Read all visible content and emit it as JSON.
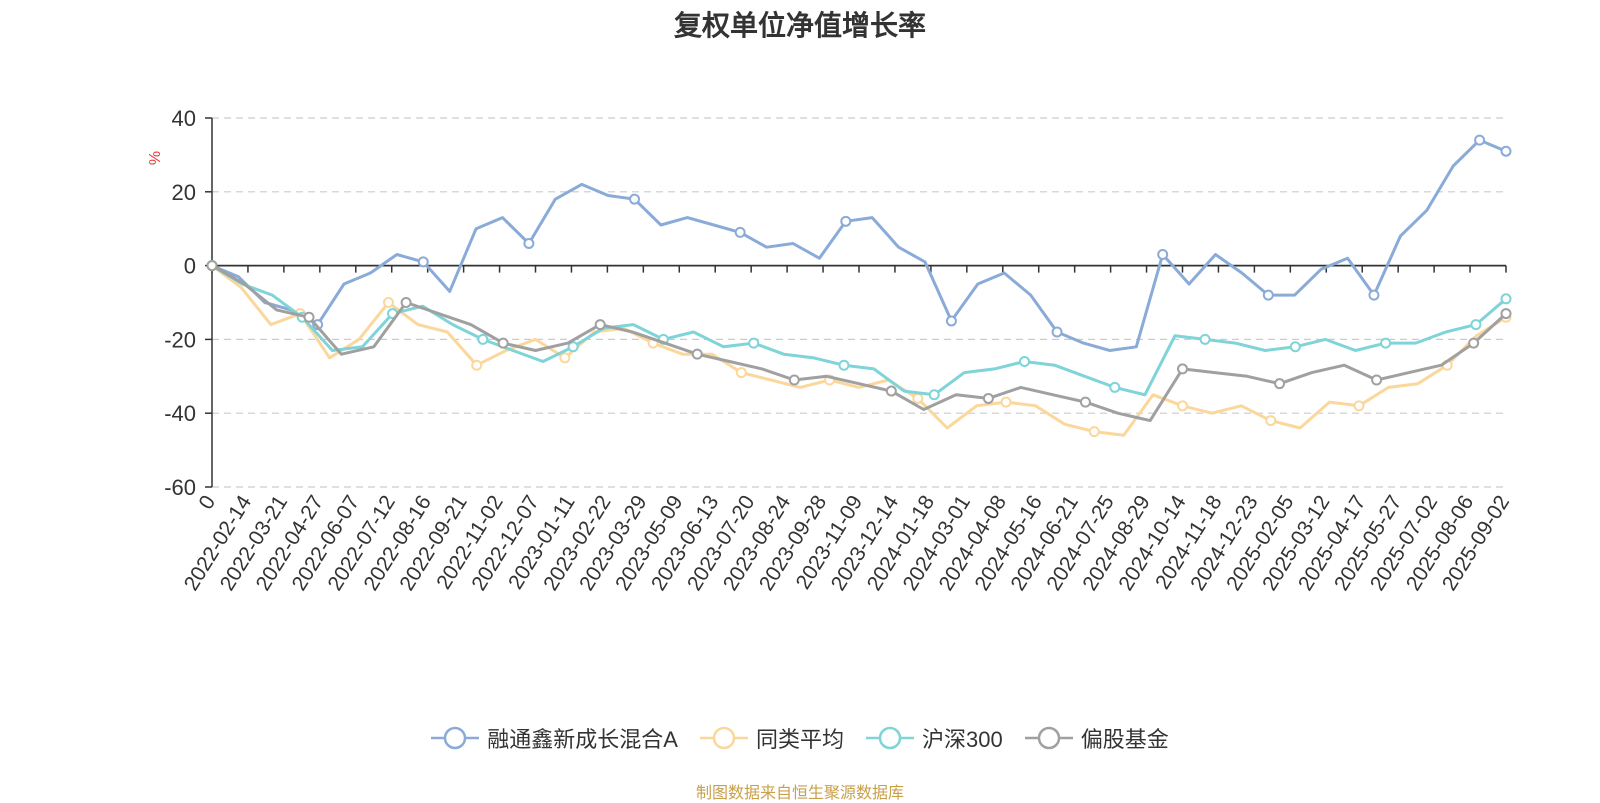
{
  "title": "复权单位净值增长率",
  "source_note": "制图数据来自恒生聚源数据库",
  "chart_data": {
    "type": "line",
    "title": "复权单位净值增长率",
    "ylabel": "%",
    "ylim": [
      -60,
      40
    ],
    "yticks": [
      40,
      20,
      0,
      -20,
      -40,
      -60
    ],
    "grid": true,
    "legend_position": "bottom",
    "x_labels": [
      "0",
      "2022-02-14",
      "2022-03-21",
      "2022-04-27",
      "2022-06-07",
      "2022-07-12",
      "2022-08-16",
      "2022-09-21",
      "2022-11-02",
      "2022-12-07",
      "2023-01-11",
      "2023-02-22",
      "2023-03-29",
      "2023-05-09",
      "2023-06-13",
      "2023-07-20",
      "2023-08-24",
      "2023-09-28",
      "2023-11-09",
      "2023-12-14",
      "2024-01-18",
      "2024-03-01",
      "2024-04-08",
      "2024-05-16",
      "2024-06-21",
      "2024-07-25",
      "2024-08-29",
      "2024-10-14",
      "2024-11-18",
      "2024-12-23",
      "2025-02-05",
      "2025-03-12",
      "2025-04-17",
      "2025-05-27",
      "2025-07-02",
      "2025-08-06",
      "2025-09-02"
    ],
    "series": [
      {
        "name": "融通鑫新成长混合A",
        "color": "#8aabd8",
        "values": [
          0,
          -3,
          -10,
          -12,
          -16,
          -5,
          -2,
          3,
          1,
          -7,
          10,
          13,
          6,
          18,
          22,
          19,
          18,
          11,
          13,
          11,
          9,
          5,
          6,
          2,
          12,
          13,
          5,
          1,
          -15,
          -5,
          -2,
          -8,
          -18,
          -21,
          -23,
          -22,
          3,
          -5,
          3,
          -2,
          -8,
          -8,
          -1,
          2,
          -8,
          8,
          15,
          27,
          34,
          31
        ]
      },
      {
        "name": "同类平均",
        "color": "#fbd79b",
        "values": [
          0,
          -6,
          -16,
          -13,
          -25,
          -20,
          -10,
          -16,
          -18,
          -27,
          -23,
          -20,
          -25,
          -18,
          -17,
          -21,
          -24,
          -24,
          -29,
          -31,
          -33,
          -31,
          -33,
          -31,
          -36,
          -44,
          -38,
          -37,
          -38,
          -43,
          -45,
          -46,
          -35,
          -38,
          -40,
          -38,
          -42,
          -44,
          -37,
          -38,
          -33,
          -32,
          -27,
          -19,
          -14
        ]
      },
      {
        "name": "沪深300",
        "color": "#7ed4d8",
        "values": [
          0,
          -5,
          -8,
          -14,
          -23,
          -22,
          -13,
          -11,
          -16,
          -20,
          -23,
          -26,
          -22,
          -17,
          -16,
          -20,
          -18,
          -22,
          -21,
          -24,
          -25,
          -27,
          -28,
          -34,
          -35,
          -29,
          -28,
          -26,
          -27,
          -30,
          -33,
          -35,
          -19,
          -20,
          -21,
          -23,
          -22,
          -20,
          -23,
          -21,
          -21,
          -18,
          -16,
          -9
        ]
      },
      {
        "name": "偏股基金",
        "color": "#a0a0a0",
        "values": [
          0,
          -5,
          -12,
          -14,
          -24,
          -22,
          -10,
          -13,
          -16,
          -21,
          -23,
          -21,
          -16,
          -18,
          -21,
          -24,
          -26,
          -28,
          -31,
          -30,
          -32,
          -34,
          -39,
          -35,
          -36,
          -33,
          -35,
          -37,
          -40,
          -42,
          -28,
          -29,
          -30,
          -32,
          -29,
          -27,
          -31,
          -29,
          -27,
          -21,
          -13
        ]
      }
    ]
  }
}
